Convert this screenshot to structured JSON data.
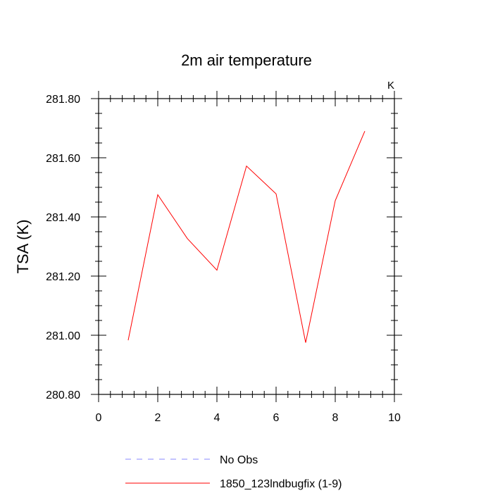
{
  "chart_data": {
    "type": "line",
    "title": "2m air temperature",
    "units_label": "K",
    "ylabel": "TSA  (K)",
    "xlabel": "",
    "xlim": [
      0,
      10
    ],
    "ylim": [
      280.8,
      281.8
    ],
    "x_ticks": [
      "0",
      "2",
      "4",
      "6",
      "8",
      "10"
    ],
    "y_ticks": [
      "281.80",
      "281.60",
      "281.40",
      "281.20",
      "281.00",
      "280.80"
    ],
    "series": [
      {
        "name": "1850_123lndbugfix (1-9)",
        "color": "#ff0000",
        "style": "solid",
        "x": [
          1,
          2,
          3,
          4,
          5,
          6,
          7,
          8,
          9
        ],
        "y": [
          280.983,
          281.475,
          281.327,
          281.22,
          281.572,
          281.478,
          280.975,
          281.455,
          281.69
        ]
      }
    ],
    "legend": [
      {
        "label": "No Obs",
        "color": "#8888ff",
        "style": "dashed"
      },
      {
        "label": "1850_123lndbugfix (1-9)",
        "color": "#ff0000",
        "style": "solid"
      }
    ],
    "legend_position": "bottom",
    "grid": false
  }
}
